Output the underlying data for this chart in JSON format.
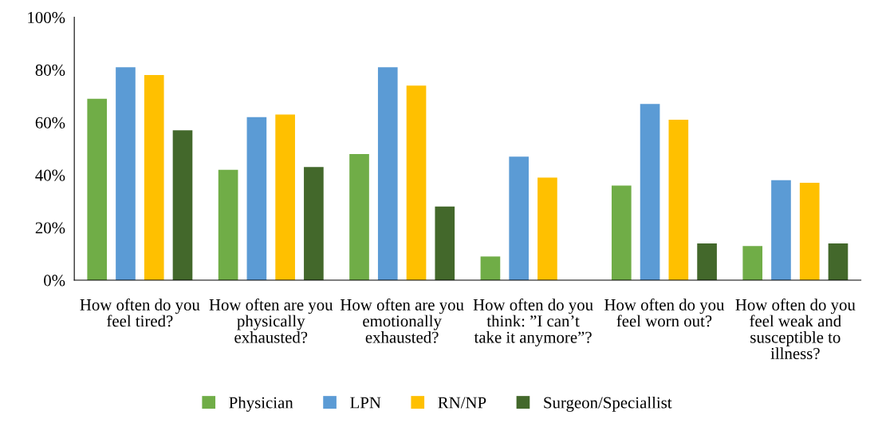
{
  "chart_data": {
    "type": "bar",
    "categories": [
      "How often do you feel tired?",
      "How often are you physically exhausted?",
      "How often are you emotionally exhausted?",
      "How often do you think: ”I can’t take it anymore”?",
      "How often do you feel worn out?",
      "How often do you feel weak and susceptible to illness?"
    ],
    "series": [
      {
        "name": "Physician",
        "color": "#70ad47",
        "values": [
          69,
          42,
          48,
          9,
          36,
          13
        ]
      },
      {
        "name": "LPN",
        "color": "#5b9bd5",
        "values": [
          81,
          62,
          81,
          47,
          67,
          38
        ]
      },
      {
        "name": "RN/NP",
        "color": "#ffc000",
        "values": [
          78,
          63,
          74,
          39,
          61,
          37
        ]
      },
      {
        "name": "Surgeon/Speciallist",
        "color": "#43682b",
        "values": [
          57,
          43,
          28,
          0,
          14,
          14
        ]
      }
    ],
    "ylim": [
      0,
      100
    ],
    "yticks": [
      {
        "value": 0,
        "label": "0%"
      },
      {
        "value": 20,
        "label": "20%"
      },
      {
        "value": 40,
        "label": "40%"
      },
      {
        "value": 60,
        "label": "60%"
      },
      {
        "value": 80,
        "label": "80%"
      },
      {
        "value": 100,
        "label": "100%"
      }
    ],
    "grid": false,
    "legend": "bottom"
  }
}
